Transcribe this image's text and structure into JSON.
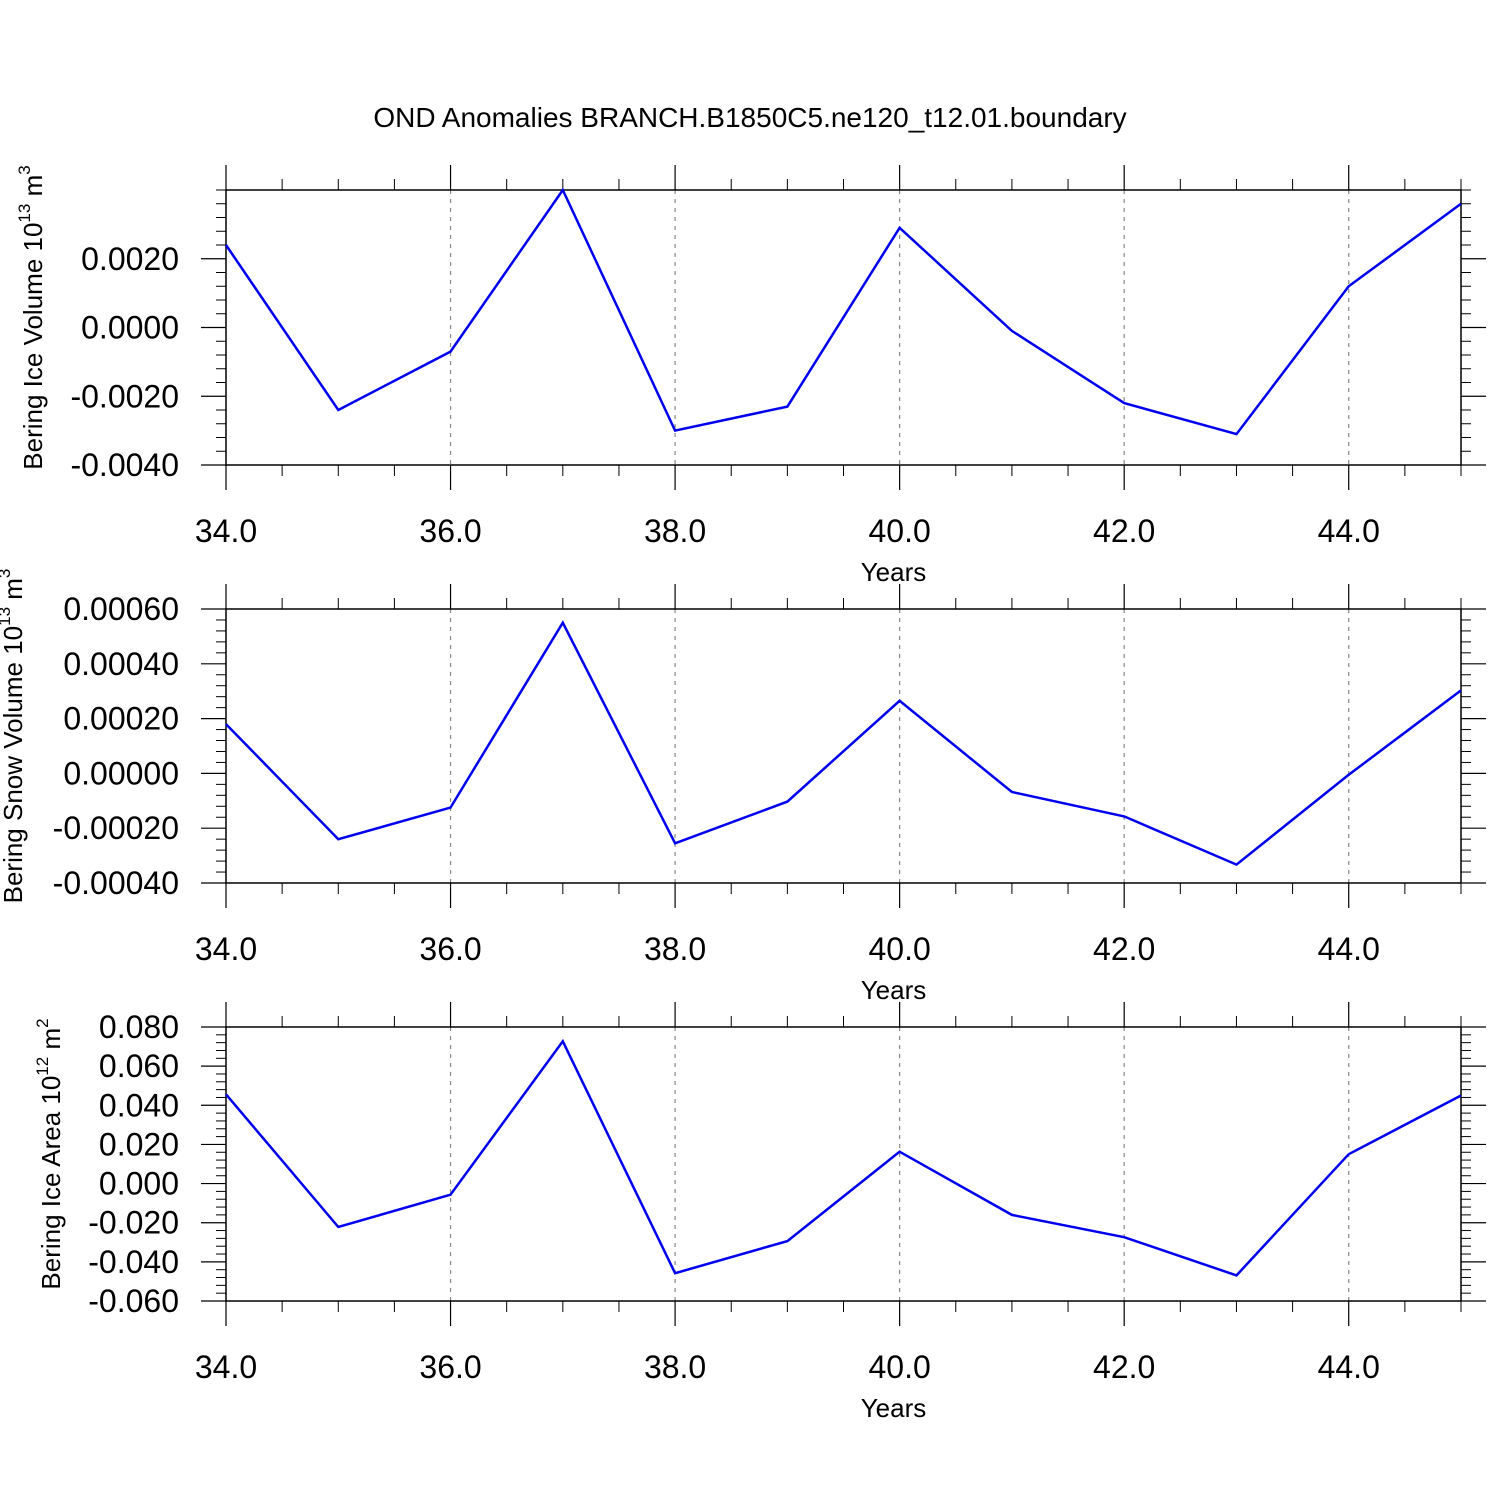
{
  "title": "OND Anomalies BRANCH.B1850C5.ne120_t12.01.boundary",
  "colors": {
    "line": "#0000ee",
    "grid": "#888888",
    "axis": "#000000"
  },
  "chart_data": [
    {
      "type": "line",
      "xlabel": "Years",
      "ylabel": {
        "text": "Bering Ice Volume 10",
        "sup": "13",
        "unit": " m",
        "unit_sup": "3"
      },
      "xlim": [
        34,
        45
      ],
      "ylim": [
        -0.004,
        0.004
      ],
      "xticks": [
        34,
        36,
        38,
        40,
        42,
        44
      ],
      "xtick_labels": [
        "34.0",
        "36.0",
        "38.0",
        "40.0",
        "42.0",
        "44.0"
      ],
      "yticks": [
        -0.004,
        -0.002,
        0.0,
        0.002
      ],
      "ytick_labels": [
        "-0.0040",
        "-0.0020",
        "0.0000",
        "0.0020"
      ],
      "grid": "vertical-dashed-at-major-x",
      "series": [
        {
          "x": [
            34,
            35,
            36,
            37,
            38,
            39,
            40,
            41,
            42,
            43,
            44,
            45
          ],
          "values": [
            0.0024,
            -0.0024,
            -0.0007,
            0.004,
            -0.003,
            -0.0023,
            0.0029,
            -0.0001,
            -0.0022,
            -0.0031,
            0.0012,
            0.0036
          ]
        }
      ]
    },
    {
      "type": "line",
      "xlabel": "Years",
      "ylabel": {
        "text": "Bering Snow Volume 10",
        "sup": "13",
        "unit": " m",
        "unit_sup": "3"
      },
      "xlim": [
        34,
        45
      ],
      "ylim": [
        -0.0004,
        0.0006
      ],
      "xticks": [
        34,
        36,
        38,
        40,
        42,
        44
      ],
      "xtick_labels": [
        "34.0",
        "36.0",
        "38.0",
        "40.0",
        "42.0",
        "44.0"
      ],
      "yticks": [
        -0.0004,
        -0.0002,
        0.0,
        0.0002,
        0.0004,
        0.0006
      ],
      "ytick_labels": [
        "-0.00040",
        "-0.00020",
        "0.00000",
        "0.00020",
        "0.00040",
        "0.00060"
      ],
      "grid": "vertical-dashed-at-major-x",
      "series": [
        {
          "x": [
            34,
            35,
            36,
            37,
            38,
            39,
            40,
            41,
            42,
            43,
            44,
            45
          ],
          "values": [
            0.00018,
            -0.00024,
            -0.000125,
            0.00055,
            -0.000255,
            -0.000103,
            0.000265,
            -6.8e-05,
            -0.000157,
            -0.000333,
            -5e-06,
            0.000303
          ]
        }
      ]
    },
    {
      "type": "line",
      "xlabel": "Years",
      "ylabel": {
        "text": "Bering Ice Area 10",
        "sup": "12",
        "unit": " m",
        "unit_sup": "2"
      },
      "xlim": [
        34,
        45
      ],
      "ylim": [
        -0.06,
        0.08
      ],
      "xticks": [
        34,
        36,
        38,
        40,
        42,
        44
      ],
      "xtick_labels": [
        "34.0",
        "36.0",
        "38.0",
        "40.0",
        "42.0",
        "44.0"
      ],
      "yticks": [
        -0.06,
        -0.04,
        -0.02,
        0.0,
        0.02,
        0.04,
        0.06,
        0.08
      ],
      "ytick_labels": [
        "-0.060",
        "-0.040",
        "-0.020",
        "0.000",
        "0.020",
        "0.040",
        "0.060",
        "0.080"
      ],
      "grid": "vertical-dashed-at-major-x",
      "series": [
        {
          "x": [
            34,
            35,
            36,
            37,
            38,
            39,
            40,
            41,
            42,
            43,
            44,
            45
          ],
          "values": [
            0.0456,
            -0.0222,
            -0.0057,
            0.0727,
            -0.0458,
            -0.0294,
            0.0163,
            -0.016,
            -0.0274,
            -0.0469,
            0.015,
            0.045
          ]
        }
      ]
    }
  ]
}
